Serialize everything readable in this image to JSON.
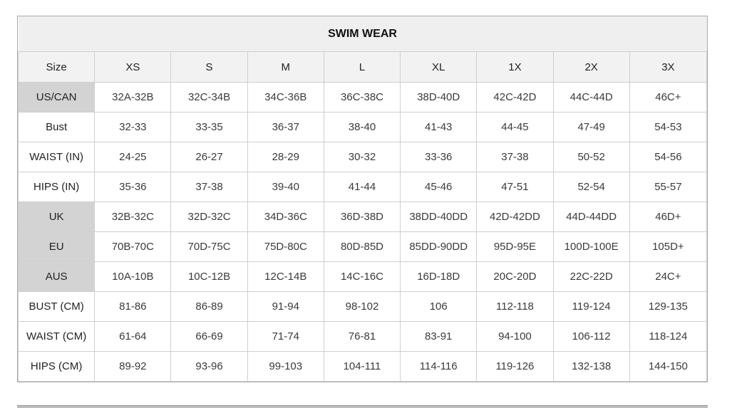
{
  "title": "SWIM WEAR",
  "header": [
    "Size",
    "XS",
    "S",
    "M",
    "L",
    "XL",
    "1X",
    "2X",
    "3X"
  ],
  "rows": [
    {
      "label": "US/CAN",
      "highlight": true,
      "values": [
        "32A-32B",
        "32C-34B",
        "34C-36B",
        "36C-38C",
        "38D-40D",
        "42C-42D",
        "44C-44D",
        "46C+"
      ]
    },
    {
      "label": "Bust",
      "highlight": false,
      "values": [
        "32-33",
        "33-35",
        "36-37",
        "38-40",
        "41-43",
        "44-45",
        "47-49",
        "54-53"
      ]
    },
    {
      "label": "WAIST (IN)",
      "highlight": false,
      "values": [
        "24-25",
        "26-27",
        "28-29",
        "30-32",
        "33-36",
        "37-38",
        "50-52",
        "54-56"
      ]
    },
    {
      "label": "HIPS (IN)",
      "highlight": false,
      "values": [
        "35-36",
        "37-38",
        "39-40",
        "41-44",
        "45-46",
        "47-51",
        "52-54",
        "55-57"
      ]
    },
    {
      "label": "UK",
      "highlight": true,
      "values": [
        "32B-32C",
        "32D-32C",
        "34D-36C",
        "36D-38D",
        "38DD-40DD",
        "42D-42DD",
        "44D-44DD",
        "46D+"
      ]
    },
    {
      "label": "EU",
      "highlight": true,
      "values": [
        "70B-70C",
        "70D-75C",
        "75D-80C",
        "80D-85D",
        "85DD-90DD",
        "95D-95E",
        "100D-100E",
        "105D+"
      ]
    },
    {
      "label": "AUS",
      "highlight": true,
      "values": [
        "10A-10B",
        "10C-12B",
        "12C-14B",
        "14C-16C",
        "16D-18D",
        "20C-20D",
        "22C-22D",
        "24C+"
      ]
    },
    {
      "label": "BUST (CM)",
      "highlight": false,
      "values": [
        "81-86",
        "86-89",
        "91-94",
        "98-102",
        "106",
        "112-118",
        "119-124",
        "129-135"
      ]
    },
    {
      "label": "WAIST (CM)",
      "highlight": false,
      "values": [
        "61-64",
        "66-69",
        "71-74",
        "76-81",
        "83-91",
        "94-100",
        "106-112",
        "118-124"
      ]
    },
    {
      "label": "HIPS (CM)",
      "highlight": false,
      "values": [
        "89-92",
        "93-96",
        "99-103",
        "104-111",
        "114-116",
        "119-126",
        "132-138",
        "144-150"
      ]
    }
  ],
  "colors": {
    "highlight_cell": "#d3d3d3",
    "header_bg": "#f2f2f2",
    "title_bg": "#efefef"
  }
}
